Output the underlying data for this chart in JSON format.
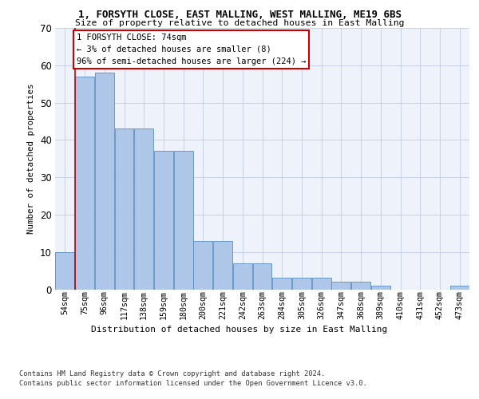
{
  "title_line1": "1, FORSYTH CLOSE, EAST MALLING, WEST MALLING, ME19 6BS",
  "title_line2": "Size of property relative to detached houses in East Malling",
  "xlabel": "Distribution of detached houses by size in East Malling",
  "ylabel": "Number of detached properties",
  "categories": [
    "54sqm",
    "75sqm",
    "96sqm",
    "117sqm",
    "138sqm",
    "159sqm",
    "180sqm",
    "200sqm",
    "221sqm",
    "242sqm",
    "263sqm",
    "284sqm",
    "305sqm",
    "326sqm",
    "347sqm",
    "368sqm",
    "389sqm",
    "410sqm",
    "431sqm",
    "452sqm",
    "473sqm"
  ],
  "values": [
    10,
    57,
    58,
    43,
    43,
    37,
    37,
    13,
    13,
    7,
    7,
    3,
    3,
    3,
    2,
    2,
    1,
    0,
    0,
    0,
    1
  ],
  "bar_color": "#aec6e8",
  "bar_edge_color": "#5a8fc0",
  "ylim": [
    0,
    70
  ],
  "yticks": [
    0,
    10,
    20,
    30,
    40,
    50,
    60,
    70
  ],
  "annotation_text": "1 FORSYTH CLOSE: 74sqm\n← 3% of detached houses are smaller (8)\n96% of semi-detached houses are larger (224) →",
  "redline_x": 0.5,
  "annotation_box_color": "#ffffff",
  "annotation_box_edge": "#cc0000",
  "footer_line1": "Contains HM Land Registry data © Crown copyright and database right 2024.",
  "footer_line2": "Contains public sector information licensed under the Open Government Licence v3.0.",
  "bg_color": "#eef2fb",
  "grid_color": "#c8d0e8"
}
